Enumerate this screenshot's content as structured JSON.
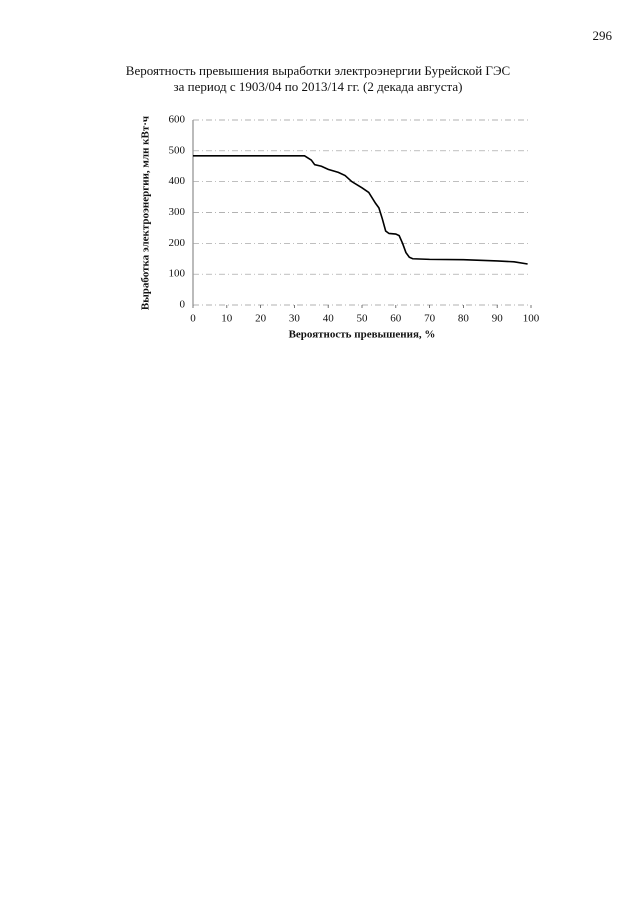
{
  "page_number": "296",
  "chart_data": {
    "type": "line",
    "title": "Вероятность превышения выработки электроэнергии Бурейской ГЭС",
    "subtitle": "за период с 1903/04 по 2013/14 гг. (2 декада августа)",
    "x_label": "Вероятность превышения, %",
    "y_label": "Выработка электроэнергии, млн кВт·ч",
    "x": [
      0,
      10,
      20,
      30,
      33,
      35,
      36,
      38,
      40,
      43,
      45,
      47,
      50,
      52,
      54,
      55,
      56,
      57,
      58,
      60,
      61,
      62,
      63,
      64,
      65,
      70,
      80,
      90,
      95,
      99
    ],
    "values": [
      484,
      484,
      484,
      484,
      484,
      470,
      455,
      450,
      440,
      430,
      420,
      400,
      380,
      365,
      330,
      315,
      280,
      240,
      232,
      230,
      225,
      200,
      170,
      155,
      150,
      148,
      147,
      143,
      140,
      133
    ],
    "color": "#000000",
    "xlim": [
      0,
      100
    ],
    "xticks": [
      0,
      10,
      20,
      30,
      40,
      50,
      60,
      70,
      80,
      90,
      100
    ],
    "ylim": [
      0,
      600
    ],
    "yticks": [
      0,
      100,
      200,
      300,
      400,
      500,
      600
    ],
    "grid": true
  }
}
